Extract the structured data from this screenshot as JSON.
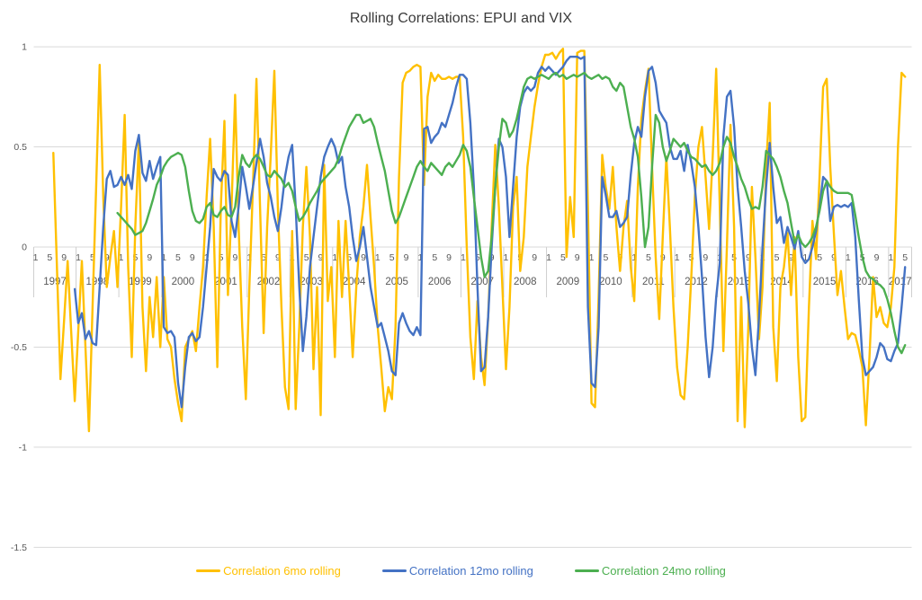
{
  "title": "Rolling Correlations: EPUI and VIX",
  "colors": {
    "series_6mo": "#FFC000",
    "series_12mo": "#4472C4",
    "series_24mo": "#4CAF50",
    "gridline": "#d9d9d9",
    "axis_band": "#cfcfcf",
    "tick_text": "#595959",
    "title_text": "#3b3b3b",
    "background": "#ffffff"
  },
  "chart_data": {
    "type": "line",
    "title": "Rolling Correlations: EPUI and VIX",
    "xlabel": "",
    "ylabel": "",
    "x_unit": "month",
    "x_start": "1997-01",
    "x_end": "2017-05",
    "x_month_tick_labels": [
      "1",
      "5",
      "9"
    ],
    "x_month_tick_positions": [
      1,
      5,
      9
    ],
    "year_labels": [
      1997,
      1998,
      1999,
      2000,
      2001,
      2002,
      2003,
      2004,
      2005,
      2006,
      2007,
      2008,
      2009,
      2010,
      2011,
      2012,
      2013,
      2014,
      2015,
      2016,
      2017
    ],
    "y_ticks": [
      "1",
      "0.5",
      "0",
      "-0.5",
      "-1",
      "-1.5"
    ],
    "y_tick_values": [
      1,
      0.5,
      0,
      -0.5,
      -1,
      -1.5
    ],
    "ylim": [
      -1.5,
      1
    ],
    "grid": true,
    "legend_position": "bottom",
    "series": [
      {
        "name": "Correlation 6mo rolling",
        "color": "#FFC000",
        "start": "1997-06",
        "values": [
          0.47,
          -0.1,
          -0.66,
          -0.37,
          -0.07,
          -0.42,
          -0.77,
          -0.42,
          -0.07,
          -0.5,
          -0.92,
          -0.3,
          0.3,
          0.91,
          0.25,
          -0.2,
          -0.05,
          0.08,
          -0.2,
          0.2,
          0.66,
          -0.1,
          -0.55,
          0.1,
          0.53,
          -0.3,
          -0.62,
          -0.25,
          -0.45,
          -0.15,
          -0.5,
          -0.15,
          -0.46,
          -0.5,
          -0.66,
          -0.78,
          -0.87,
          -0.5,
          -0.46,
          -0.42,
          -0.52,
          -0.3,
          -0.1,
          0.25,
          0.54,
          0.1,
          -0.6,
          0.2,
          0.63,
          -0.24,
          0.2,
          0.76,
          0.1,
          -0.4,
          -0.76,
          -0.2,
          0.3,
          0.84,
          0.2,
          -0.43,
          0.1,
          0.46,
          0.88,
          0.2,
          -0.3,
          -0.7,
          -0.81,
          0.08,
          -0.81,
          -0.4,
          0.1,
          0.4,
          0.05,
          -0.61,
          -0.2,
          -0.84,
          0.41,
          -0.27,
          -0.1,
          -0.55,
          0.13,
          -0.25,
          0.13,
          -0.2,
          -0.55,
          -0.2,
          0.05,
          0.2,
          0.41,
          0.15,
          -0.1,
          -0.4,
          -0.6,
          -0.82,
          -0.7,
          -0.76,
          -0.4,
          0.35,
          0.82,
          0.87,
          0.88,
          0.9,
          0.91,
          0.9,
          0.31,
          0.75,
          0.87,
          0.83,
          0.86,
          0.84,
          0.84,
          0.85,
          0.84,
          0.85,
          0.85,
          0.55,
          0.0,
          -0.45,
          -0.66,
          -0.27,
          -0.55,
          -0.69,
          -0.35,
          0.1,
          0.51,
          0.2,
          -0.2,
          -0.61,
          -0.3,
          0.2,
          0.35,
          -0.12,
          0.05,
          0.4,
          0.55,
          0.7,
          0.81,
          0.9,
          0.96,
          0.96,
          0.97,
          0.94,
          0.97,
          0.99,
          -0.05,
          0.25,
          0.05,
          0.97,
          0.98,
          0.98,
          0.2,
          -0.78,
          -0.8,
          -0.25,
          0.46,
          0.3,
          0.19,
          0.4,
          0.1,
          -0.12,
          0.1,
          0.23,
          -0.1,
          -0.27,
          0.3,
          0.64,
          0.78,
          0.89,
          0.4,
          -0.05,
          -0.36,
          0.05,
          0.45,
          0.1,
          -0.3,
          -0.6,
          -0.74,
          -0.76,
          -0.5,
          -0.15,
          0.25,
          0.5,
          0.6,
          0.35,
          0.09,
          0.45,
          0.89,
          0.2,
          -0.52,
          0.0,
          0.61,
          0.1,
          -0.87,
          -0.25,
          -0.9,
          -0.4,
          0.3,
          -0.05,
          -0.46,
          -0.2,
          0.4,
          0.72,
          -0.4,
          -0.67,
          -0.2,
          -0.1,
          0.07,
          -0.24,
          0.05,
          -0.55,
          -0.87,
          -0.85,
          -0.3,
          0.13,
          -0.06,
          0.35,
          0.8,
          0.84,
          0.4,
          0.07,
          -0.24,
          -0.12,
          -0.3,
          -0.46,
          -0.43,
          -0.44,
          -0.51,
          -0.6,
          -0.89,
          -0.55,
          -0.15,
          -0.35,
          -0.3,
          -0.38,
          -0.4,
          -0.3,
          -0.1,
          0.5,
          0.87,
          0.85
        ]
      },
      {
        "name": "Correlation 12mo rolling",
        "color": "#4472C4",
        "start": "1997-12",
        "values": [
          -0.21,
          -0.38,
          -0.33,
          -0.46,
          -0.42,
          -0.48,
          -0.49,
          -0.2,
          0.1,
          0.34,
          0.38,
          0.3,
          0.31,
          0.35,
          0.31,
          0.36,
          0.29,
          0.48,
          0.56,
          0.37,
          0.33,
          0.43,
          0.34,
          0.4,
          0.45,
          -0.4,
          -0.43,
          -0.42,
          -0.45,
          -0.68,
          -0.8,
          -0.6,
          -0.45,
          -0.43,
          -0.47,
          -0.45,
          -0.3,
          -0.1,
          0.1,
          0.39,
          0.35,
          0.33,
          0.38,
          0.36,
          0.13,
          0.05,
          0.2,
          0.4,
          0.3,
          0.19,
          0.3,
          0.42,
          0.54,
          0.45,
          0.32,
          0.25,
          0.15,
          0.08,
          0.2,
          0.35,
          0.45,
          0.51,
          0.2,
          -0.2,
          -0.52,
          -0.35,
          -0.1,
          0.05,
          0.2,
          0.35,
          0.45,
          0.5,
          0.54,
          0.5,
          0.42,
          0.45,
          0.3,
          0.2,
          0.05,
          -0.07,
          0.0,
          0.1,
          -0.05,
          -0.2,
          -0.3,
          -0.4,
          -0.38,
          -0.45,
          -0.52,
          -0.62,
          -0.64,
          -0.38,
          -0.33,
          -0.38,
          -0.42,
          -0.44,
          -0.4,
          -0.44,
          0.59,
          0.6,
          0.52,
          0.55,
          0.57,
          0.62,
          0.6,
          0.66,
          0.72,
          0.8,
          0.86,
          0.86,
          0.84,
          0.62,
          0.3,
          -0.2,
          -0.62,
          -0.6,
          -0.35,
          0.0,
          0.3,
          0.54,
          0.5,
          0.35,
          0.05,
          0.3,
          0.55,
          0.7,
          0.77,
          0.8,
          0.78,
          0.8,
          0.87,
          0.9,
          0.88,
          0.9,
          0.88,
          0.86,
          0.88,
          0.9,
          0.93,
          0.95,
          0.95,
          0.95,
          0.94,
          0.95,
          -0.3,
          -0.68,
          -0.7,
          -0.4,
          0.35,
          0.26,
          0.15,
          0.15,
          0.18,
          0.1,
          0.12,
          0.15,
          0.36,
          0.52,
          0.6,
          0.55,
          0.75,
          0.88,
          0.9,
          0.82,
          0.68,
          0.65,
          0.62,
          0.5,
          0.44,
          0.44,
          0.48,
          0.38,
          0.51,
          0.42,
          0.3,
          0.1,
          -0.15,
          -0.45,
          -0.65,
          -0.5,
          -0.25,
          -0.08,
          0.55,
          0.75,
          0.78,
          0.6,
          0.3,
          0.1,
          -0.12,
          -0.28,
          -0.5,
          -0.64,
          -0.35,
          0.0,
          0.3,
          0.52,
          0.3,
          0.12,
          0.15,
          0.02,
          0.1,
          0.05,
          -0.01,
          0.08,
          -0.05,
          -0.08,
          -0.06,
          0.0,
          0.08,
          0.2,
          0.35,
          0.33,
          0.13,
          0.2,
          0.21,
          0.2,
          0.21,
          0.2,
          0.22,
          0.05,
          -0.26,
          -0.55,
          -0.64,
          -0.62,
          -0.6,
          -0.55,
          -0.48,
          -0.5,
          -0.56,
          -0.57,
          -0.52,
          -0.48,
          -0.3,
          -0.1
        ]
      },
      {
        "name": "Correlation 24mo rolling",
        "color": "#4CAF50",
        "start": "1998-12",
        "values": [
          0.17,
          0.15,
          0.13,
          0.11,
          0.09,
          0.06,
          0.07,
          0.08,
          0.12,
          0.18,
          0.24,
          0.31,
          0.35,
          0.4,
          0.43,
          0.45,
          0.46,
          0.47,
          0.46,
          0.4,
          0.28,
          0.18,
          0.13,
          0.12,
          0.14,
          0.2,
          0.22,
          0.16,
          0.15,
          0.18,
          0.2,
          0.16,
          0.15,
          0.2,
          0.35,
          0.46,
          0.42,
          0.4,
          0.44,
          0.46,
          0.44,
          0.4,
          0.36,
          0.35,
          0.38,
          0.36,
          0.34,
          0.3,
          0.32,
          0.28,
          0.2,
          0.13,
          0.15,
          0.18,
          0.22,
          0.25,
          0.28,
          0.32,
          0.34,
          0.36,
          0.38,
          0.4,
          0.44,
          0.5,
          0.55,
          0.6,
          0.63,
          0.66,
          0.66,
          0.62,
          0.63,
          0.64,
          0.6,
          0.52,
          0.45,
          0.38,
          0.28,
          0.18,
          0.12,
          0.15,
          0.2,
          0.25,
          0.3,
          0.35,
          0.4,
          0.43,
          0.4,
          0.38,
          0.42,
          0.4,
          0.38,
          0.36,
          0.4,
          0.42,
          0.4,
          0.43,
          0.46,
          0.51,
          0.48,
          0.4,
          0.25,
          0.1,
          -0.05,
          -0.15,
          -0.12,
          0.05,
          0.3,
          0.5,
          0.64,
          0.62,
          0.55,
          0.58,
          0.64,
          0.72,
          0.8,
          0.84,
          0.85,
          0.84,
          0.85,
          0.86,
          0.85,
          0.84,
          0.86,
          0.87,
          0.85,
          0.86,
          0.84,
          0.85,
          0.86,
          0.85,
          0.86,
          0.87,
          0.85,
          0.84,
          0.85,
          0.86,
          0.84,
          0.85,
          0.84,
          0.8,
          0.78,
          0.82,
          0.8,
          0.7,
          0.6,
          0.54,
          0.45,
          0.25,
          0.0,
          0.1,
          0.4,
          0.66,
          0.62,
          0.5,
          0.43,
          0.48,
          0.54,
          0.52,
          0.5,
          0.52,
          0.48,
          0.45,
          0.44,
          0.42,
          0.4,
          0.41,
          0.38,
          0.36,
          0.38,
          0.42,
          0.5,
          0.55,
          0.52,
          0.45,
          0.4,
          0.34,
          0.3,
          0.24,
          0.19,
          0.2,
          0.19,
          0.3,
          0.48,
          0.46,
          0.44,
          0.4,
          0.35,
          0.28,
          0.22,
          0.12,
          0.02,
          0.06,
          0.02,
          0.0,
          0.02,
          0.05,
          0.1,
          0.18,
          0.28,
          0.33,
          0.3,
          0.28,
          0.27,
          0.27,
          0.27,
          0.27,
          0.26,
          0.16,
          0.05,
          -0.05,
          -0.12,
          -0.15,
          -0.16,
          -0.18,
          -0.19,
          -0.21,
          -0.26,
          -0.33,
          -0.42,
          -0.5,
          -0.53,
          -0.49
        ]
      }
    ]
  },
  "legend": {
    "items": [
      "Correlation 6mo rolling",
      "Correlation 12mo rolling",
      "Correlation 24mo rolling"
    ]
  }
}
